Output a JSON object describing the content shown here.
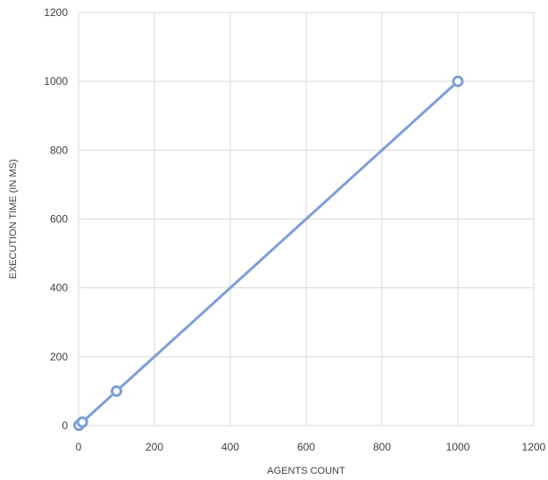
{
  "chart_data": {
    "type": "scatter",
    "title": "",
    "xlabel": "AGENTS COUNT",
    "ylabel": "EXECUTION TIME (IN MS)",
    "xlim": [
      0,
      1200
    ],
    "ylim": [
      0,
      1200
    ],
    "x_ticks": [
      0,
      200,
      400,
      600,
      800,
      1000,
      1200
    ],
    "y_ticks": [
      0,
      200,
      400,
      600,
      800,
      1000,
      1200
    ],
    "grid": true,
    "legend": "none",
    "series": [
      {
        "x": [
          1,
          10,
          100,
          1000
        ],
        "y": [
          1,
          10,
          100,
          1000
        ],
        "color": "#7e9fd7",
        "marker": "circle",
        "line": "straight"
      }
    ]
  }
}
